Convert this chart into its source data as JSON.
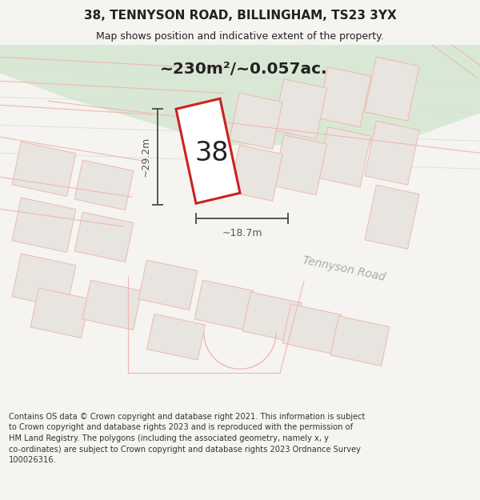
{
  "title": "38, TENNYSON ROAD, BILLINGHAM, TS23 3YX",
  "subtitle": "Map shows position and indicative extent of the property.",
  "area_label": "~230m²/~0.057ac.",
  "property_number": "38",
  "dim_height": "~29.2m",
  "dim_width": "~18.7m",
  "footer_lines": [
    "Contains OS data © Crown copyright and database right 2021. This information is subject",
    "to Crown copyright and database rights 2023 and is reproduced with the permission of",
    "HM Land Registry. The polygons (including the associated geometry, namely x, y",
    "co-ordinates) are subject to Crown copyright and database rights 2023 Ordnance Survey",
    "100026316."
  ],
  "bg_color": "#f5f4f1",
  "map_bg": "#f8f7f4",
  "road_line_color": "#f0b8b0",
  "green_area_color": "#d8e8d4",
  "building_fill": "#e8e4e0",
  "property_fill": "#ffffff",
  "property_edge": "#cc2222",
  "dim_line_color": "#555555",
  "road_label_color": "#aaaaaa",
  "title_color": "#222222",
  "footer_color": "#333333",
  "separator_color": "#cccccc"
}
